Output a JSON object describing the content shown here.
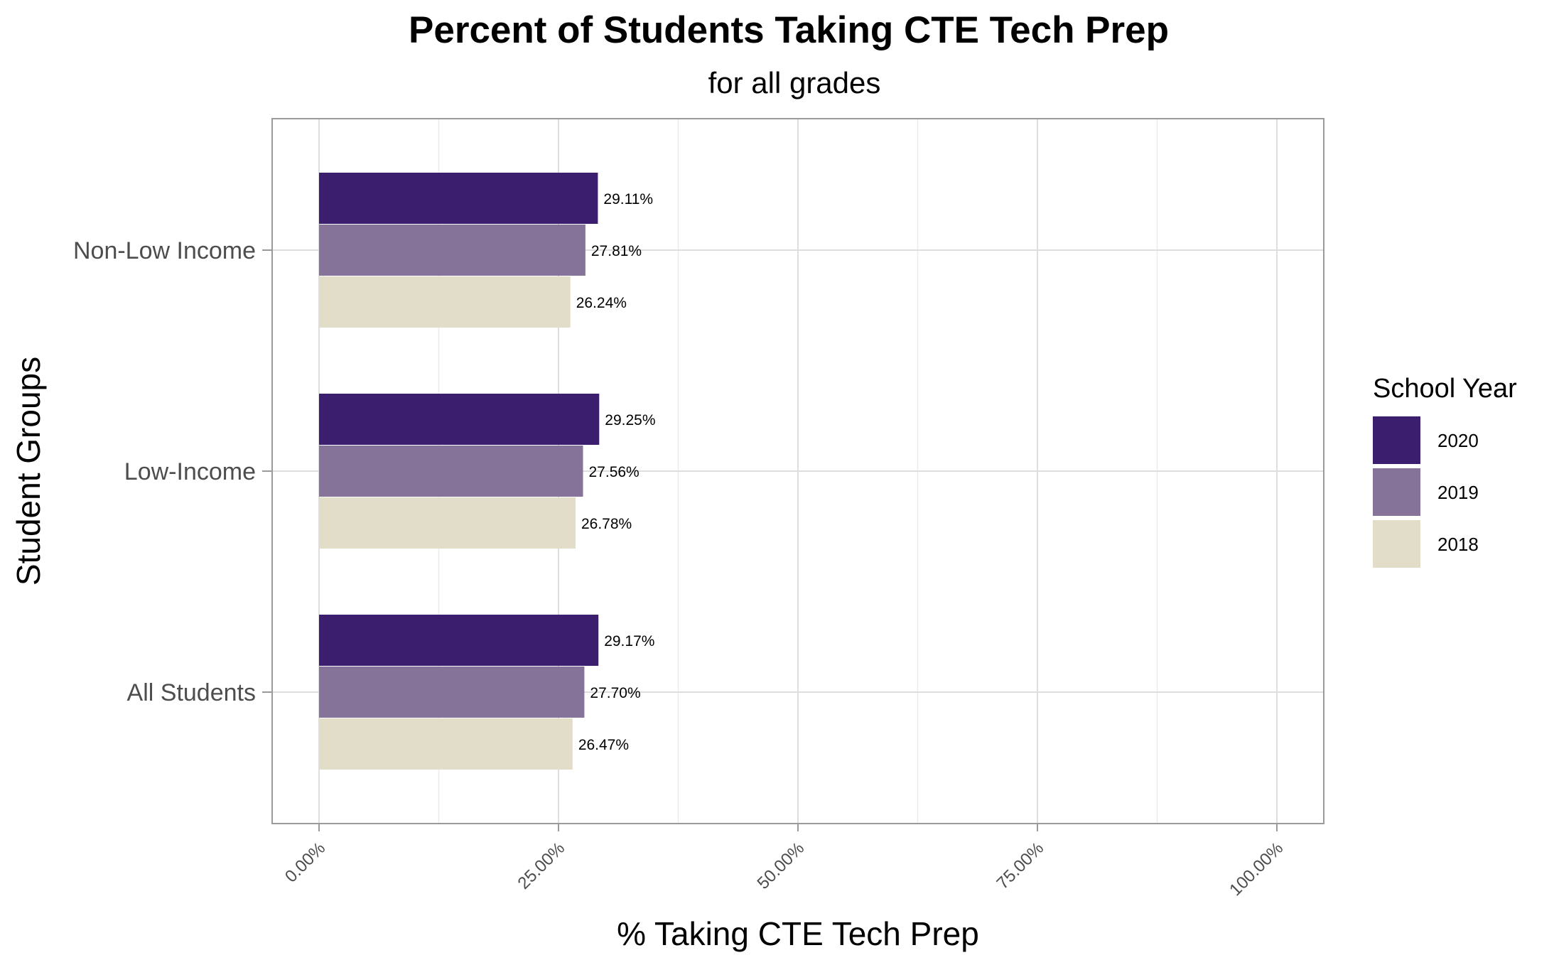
{
  "chart_data": {
    "type": "bar",
    "orientation": "horizontal",
    "title": "Percent of Students Taking CTE Tech Prep",
    "subtitle": "for all grades",
    "xlabel": "% Taking CTE Tech Prep",
    "ylabel": "Student Groups",
    "xlim": [
      0,
      100
    ],
    "x_ticks": [
      "0.00%",
      "25.00%",
      "50.00%",
      "75.00%",
      "100.00%"
    ],
    "x_tick_values": [
      0,
      25,
      50,
      75,
      100
    ],
    "categories": [
      "Non-Low Income",
      "Low-Income",
      "All Students"
    ],
    "series": [
      {
        "name": "2020",
        "color": "#3c1e6e",
        "values": [
          29.11,
          29.25,
          29.17
        ],
        "labels": [
          "29.11%",
          "29.25%",
          "29.17%"
        ]
      },
      {
        "name": "2019",
        "color": "#86739a",
        "values": [
          27.81,
          27.56,
          27.7
        ],
        "labels": [
          "27.81%",
          "27.56%",
          "27.70%"
        ]
      },
      {
        "name": "2018",
        "color": "#e2ddc9",
        "values": [
          26.24,
          26.78,
          26.47
        ],
        "labels": [
          "26.24%",
          "26.78%",
          "26.47%"
        ]
      }
    ],
    "legend": {
      "title": "School Year",
      "position": "right"
    },
    "grid": true
  }
}
